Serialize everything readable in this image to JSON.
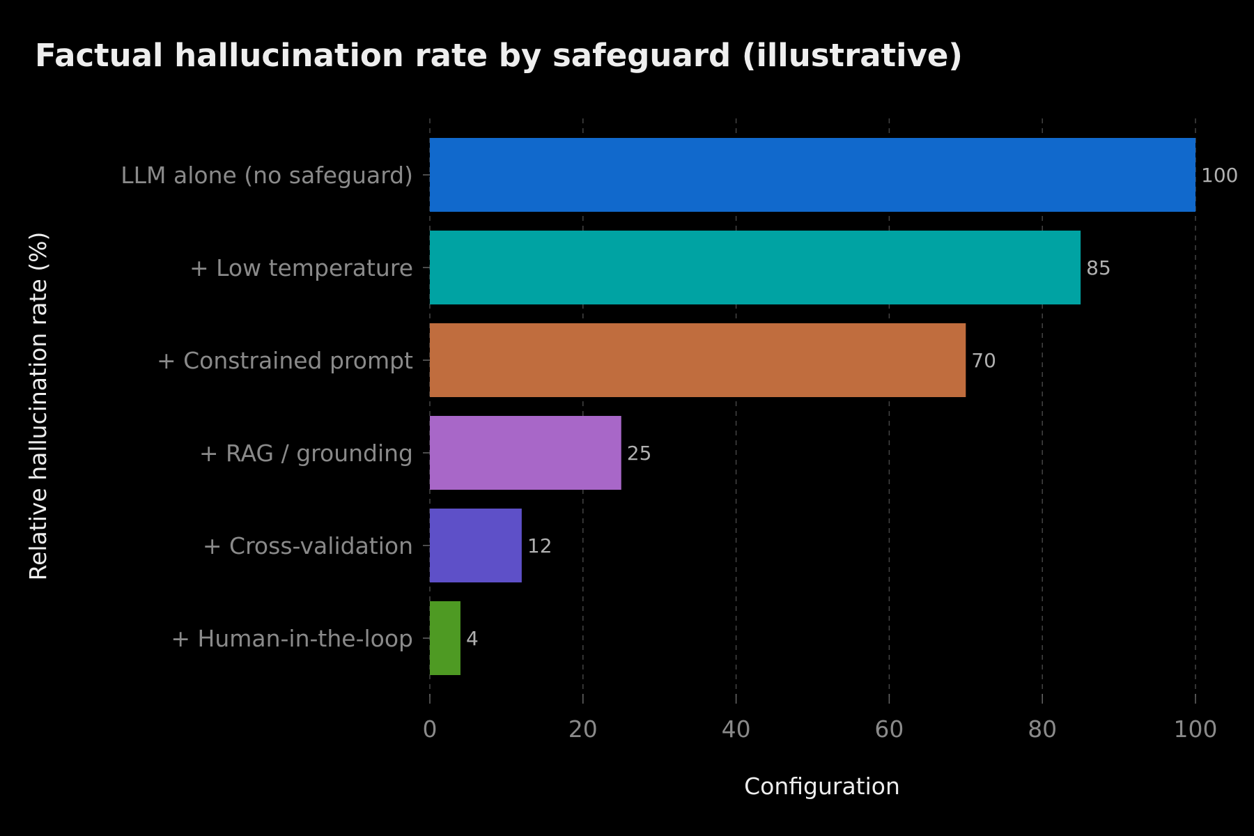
{
  "chart_data": {
    "type": "bar",
    "orientation": "horizontal",
    "title": "Factual hallucination rate by safeguard (illustrative)",
    "xlabel": "Configuration",
    "ylabel": "Relative hallucination rate (%)",
    "categories": [
      "LLM alone (no safeguard)",
      "+ Low temperature",
      "+ Constrained prompt",
      "+ RAG / grounding",
      "+ Cross-validation",
      "+ Human-in-the-loop"
    ],
    "values": [
      100,
      85,
      70,
      25,
      12,
      4
    ],
    "colors": [
      "#1169cc",
      "#00a3a3",
      "#c06d3e",
      "#a867c8",
      "#5e50c8",
      "#4e9a23"
    ],
    "xlim": [
      0,
      100
    ],
    "xticks": [
      "0",
      "20",
      "40",
      "60",
      "80",
      "100"
    ],
    "grid": "x-dashed",
    "background": "#000000"
  }
}
